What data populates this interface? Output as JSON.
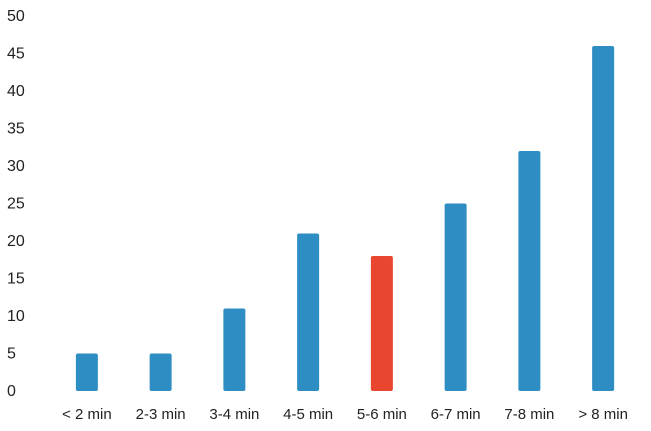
{
  "chart_data": {
    "type": "bar",
    "title": "",
    "xlabel": "",
    "ylabel": "",
    "categories": [
      "< 2 min",
      "2-3 min",
      "3-4 min",
      "4-5 min",
      "5-6 min",
      "6-7 min",
      "7-8 min",
      "> 8 min"
    ],
    "values": [
      5,
      5,
      11,
      21,
      18,
      25,
      32,
      46
    ],
    "ylim": [
      0,
      50
    ],
    "yticks": [
      0,
      5,
      10,
      15,
      20,
      25,
      30,
      35,
      40,
      45,
      50
    ],
    "grid": false,
    "legend": "none",
    "colors": {
      "default_bar": "#2e8ec4",
      "highlight_bar": "#e8462e"
    },
    "highlight_category": "5-6 min"
  }
}
